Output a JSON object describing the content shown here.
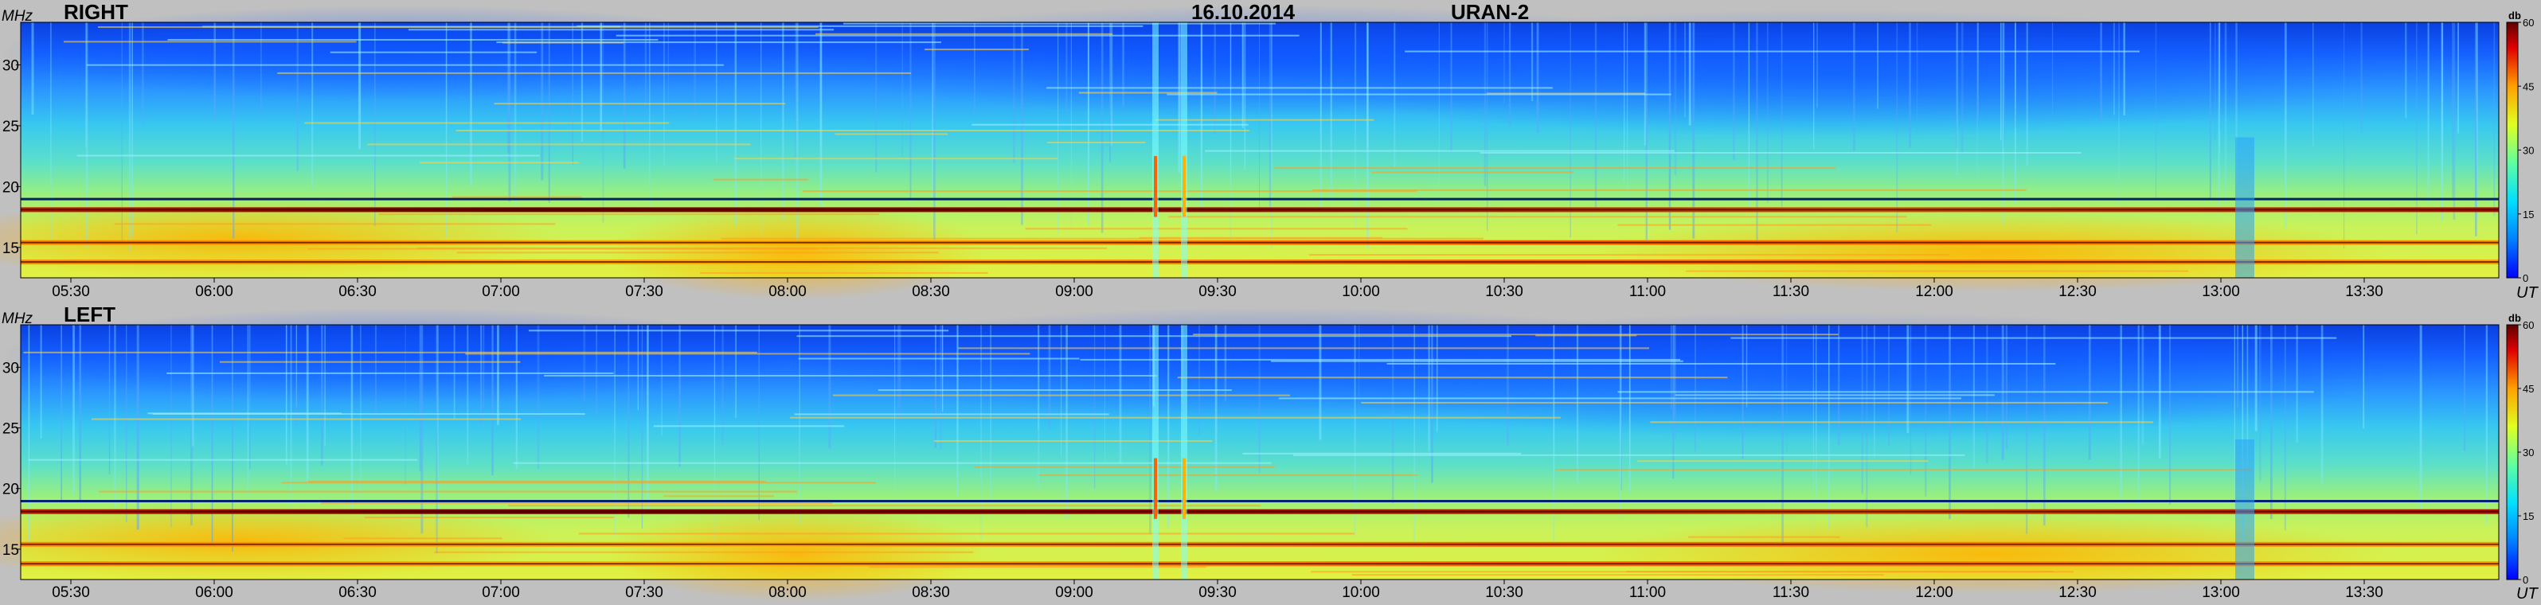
{
  "header": {
    "date": "16.10.2014",
    "instrument": "URAN-2"
  },
  "chart_data": [
    {
      "type": "heatmap",
      "title": "RIGHT",
      "ylabel": "MHz",
      "xlabel": "UT",
      "x_ticks": [
        "05:30",
        "06:00",
        "06:30",
        "07:00",
        "07:30",
        "08:00",
        "08:30",
        "09:00",
        "09:30",
        "10:00",
        "10:30",
        "11:00",
        "11:30",
        "12:00",
        "12:30",
        "13:00",
        "13:30"
      ],
      "y_ticks": [
        "15",
        "20",
        "25",
        "30"
      ],
      "ylim": [
        12.5,
        33.5
      ],
      "colorbar": {
        "label": "db",
        "ticks": [
          "0",
          "15",
          "30",
          "45",
          "60"
        ],
        "range": [
          0,
          60
        ]
      },
      "features": {
        "dark_lines_mhz": [
          18.1,
          15.4,
          13.8
        ],
        "blue_line_mhz": 19.0,
        "bursts_ut": [
          "09:17",
          "09:23"
        ],
        "band_ut": "13:05"
      }
    },
    {
      "type": "heatmap",
      "title": "LEFT",
      "ylabel": "MHz",
      "xlabel": "UT",
      "x_ticks": [
        "05:30",
        "06:00",
        "06:30",
        "07:00",
        "07:30",
        "08:00",
        "08:30",
        "09:00",
        "09:30",
        "10:00",
        "10:30",
        "11:00",
        "11:30",
        "12:00",
        "12:30",
        "13:00",
        "13:30"
      ],
      "y_ticks": [
        "15",
        "20",
        "25",
        "30"
      ],
      "ylim": [
        12.5,
        33.5
      ],
      "colorbar": {
        "label": "db",
        "ticks": [
          "0",
          "15",
          "30",
          "45",
          "60"
        ],
        "range": [
          0,
          60
        ]
      },
      "features": {
        "dark_lines_mhz": [
          18.1,
          15.4,
          13.8
        ],
        "blue_line_mhz": 19.0,
        "bursts_ut": [
          "09:17",
          "09:23"
        ],
        "band_ut": "13:05"
      }
    }
  ]
}
